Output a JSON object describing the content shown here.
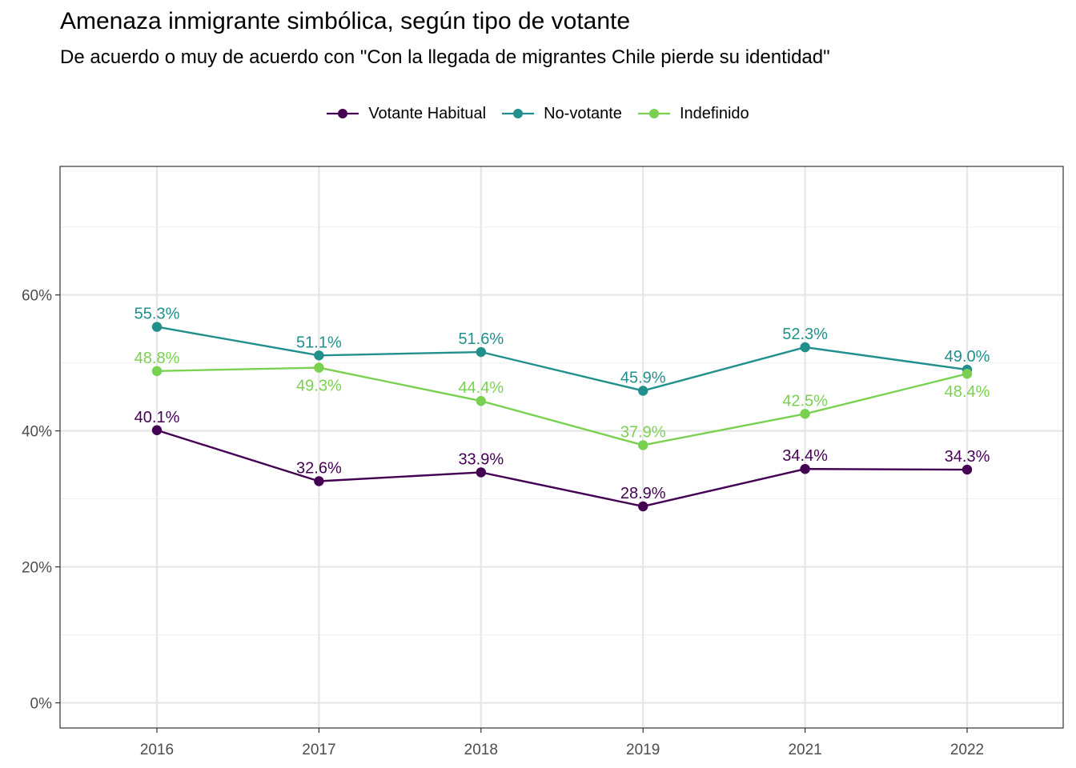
{
  "title": "Amenaza inmigrante simbólica, según tipo de votante",
  "subtitle": "De acuerdo o muy de acuerdo con \"Con la llegada de migrantes Chile pierde su identidad\"",
  "chart_data": {
    "type": "line",
    "categories": [
      "2016",
      "2017",
      "2018",
      "2019",
      "2021",
      "2022"
    ],
    "series": [
      {
        "name": "Votante Habitual",
        "color": "#440154",
        "values": [
          40.1,
          32.6,
          33.9,
          28.9,
          34.4,
          34.3
        ],
        "labels": [
          "40.1%",
          "32.6%",
          "33.9%",
          "28.9%",
          "34.4%",
          "34.3%"
        ]
      },
      {
        "name": "No-votante",
        "color": "#21908C",
        "values": [
          55.3,
          51.1,
          51.6,
          45.9,
          52.3,
          49.0
        ],
        "labels": [
          "55.3%",
          "51.1%",
          "51.6%",
          "45.9%",
          "52.3%",
          "49.0%"
        ]
      },
      {
        "name": "Indefinido",
        "color": "#7AD151",
        "values": [
          48.8,
          49.3,
          44.4,
          37.9,
          42.5,
          48.4
        ],
        "labels": [
          "48.8%",
          "49.3%",
          "44.4%",
          "37.9%",
          "42.5%",
          "48.4%"
        ]
      }
    ],
    "label_positions": [
      [
        "above",
        "above",
        "above",
        "above",
        "above",
        "above"
      ],
      [
        "above",
        "above",
        "above",
        "above",
        "above",
        "above"
      ],
      [
        "above",
        "below",
        "above",
        "above",
        "above",
        "below"
      ]
    ],
    "yticks": [
      0,
      20,
      40,
      60
    ],
    "ytick_labels": [
      "0%",
      "20%",
      "40%",
      "60%"
    ],
    "ylim": [
      -3.7,
      78.9
    ],
    "xlabel": "",
    "ylabel": "",
    "grid": true,
    "legend_position": "top"
  }
}
